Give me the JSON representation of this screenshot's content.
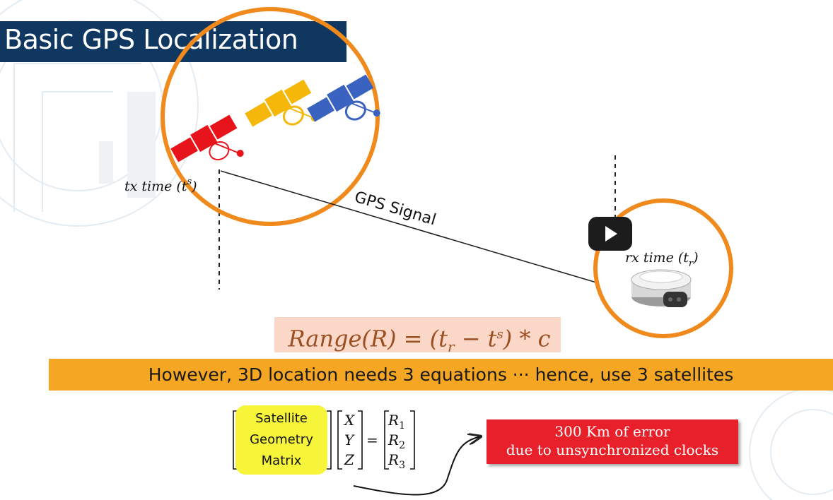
{
  "title": "Basic GPS Localization",
  "labels": {
    "tx_time": "tx time (t",
    "tx_time_sup": "s",
    "tx_time_close": ")",
    "rx_time": "rx time (t",
    "rx_time_sub": "r",
    "rx_time_close": ")",
    "gps_signal": "GPS Signal"
  },
  "equation": {
    "range": "Range(R) = (t",
    "sub_r": "r",
    "minus": " − t",
    "sup_s": "s",
    "tail": ") * c"
  },
  "banner": "However, 3D location needs 3 equations ··· hence, use 3 satellites",
  "matrix": {
    "geometry_lines": [
      "Satellite",
      "Geometry",
      "Matrix"
    ],
    "vector": [
      "X",
      "Y",
      "Z"
    ],
    "equals": "=",
    "ranges": [
      {
        "base": "R",
        "sub": "1"
      },
      {
        "base": "R",
        "sub": "2"
      },
      {
        "base": "R",
        "sub": "3"
      }
    ]
  },
  "error_note": {
    "line1": "300 Km of error",
    "line2": "due to unsynchronized clocks"
  },
  "colors": {
    "title_bg": "#0f3760",
    "circle": "#f08a1d",
    "satellite_red": "#e8141c",
    "satellite_yellow": "#f5b80a",
    "satellite_blue": "#3a62c0",
    "banner_bg": "#f5a623",
    "error_bg": "#e8202a",
    "geometry_bg": "#f6f53a"
  },
  "icons": [
    "satellite-icon",
    "gps-receiver-icon",
    "play-icon"
  ]
}
